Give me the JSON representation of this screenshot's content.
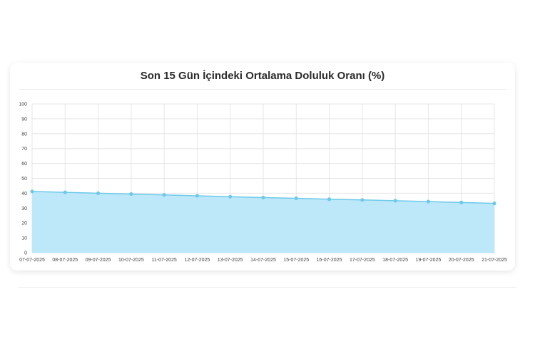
{
  "chart_data": {
    "type": "area",
    "title": "Son 15 Gün İçindeki Ortalama Doluluk Oranı (%)",
    "x": [
      "07-07-2025",
      "08-07-2025",
      "09-07-2025",
      "10-07-2025",
      "11-07-2025",
      "12-07-2025",
      "13-07-2025",
      "14-07-2025",
      "15-07-2025",
      "16-07-2025",
      "17-07-2025",
      "18-07-2025",
      "19-07-2025",
      "20-07-2025",
      "21-07-2025"
    ],
    "series": [
      {
        "values": [
          41.2,
          40.6,
          40.0,
          39.5,
          38.9,
          38.3,
          37.7,
          37.1,
          36.6,
          36.0,
          35.5,
          35.0,
          34.4,
          33.8,
          33.2
        ]
      }
    ],
    "ylim": [
      0,
      100
    ],
    "yticks": [
      "0",
      "10",
      "20",
      "30",
      "40",
      "50",
      "60",
      "70",
      "80",
      "90",
      "100"
    ],
    "grid": true,
    "colors": {
      "line": "#6ec9e8",
      "fill": "#bde8fa",
      "grid": "#e6e6e6"
    }
  }
}
